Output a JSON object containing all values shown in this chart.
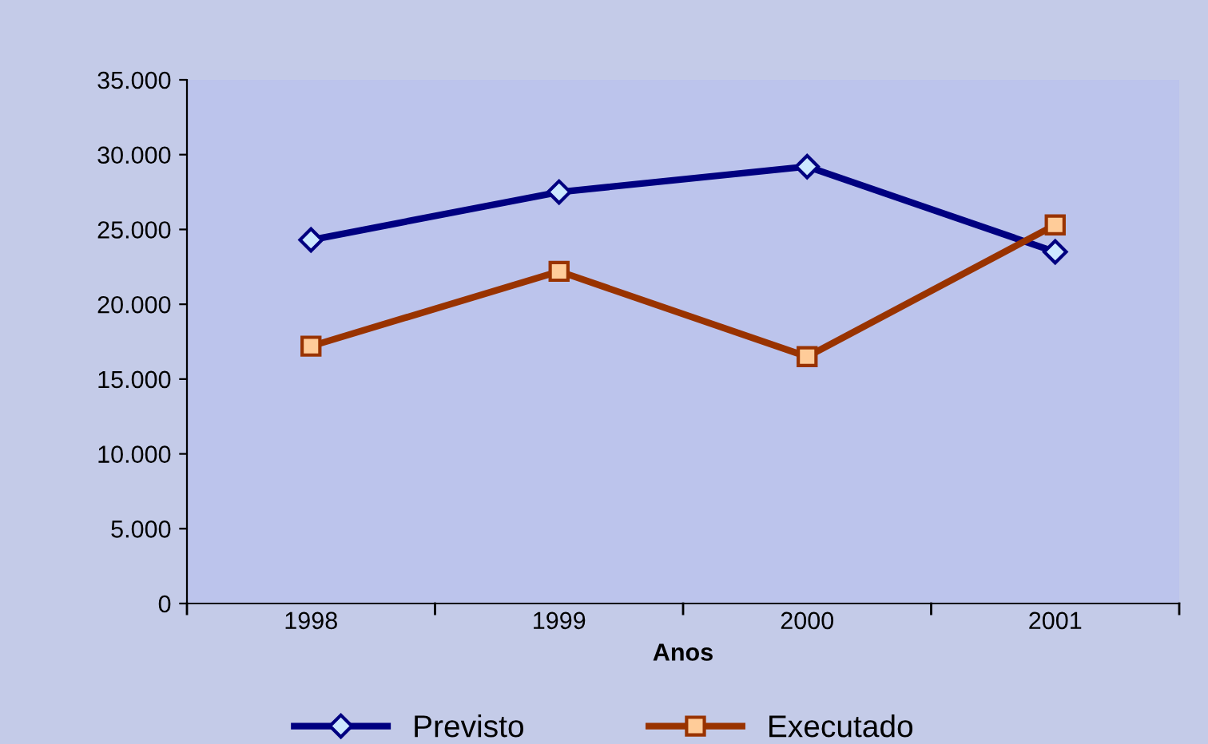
{
  "chart_data": {
    "type": "line",
    "xlabel": "Anos",
    "categories": [
      "1998",
      "1999",
      "2000",
      "2001"
    ],
    "series": [
      {
        "name": "Previsto",
        "color": "#000080",
        "marker": "diamond",
        "values": [
          24300,
          27500,
          29200,
          23500
        ]
      },
      {
        "name": "Executado",
        "color": "#993300",
        "marker": "square",
        "values": [
          17200,
          22200,
          16500,
          25300
        ]
      }
    ],
    "ylim": [
      0,
      35000
    ],
    "yticks": [
      {
        "value": 0,
        "label": "0"
      },
      {
        "value": 5000,
        "label": "5.000"
      },
      {
        "value": 10000,
        "label": "10.000"
      },
      {
        "value": 15000,
        "label": "15.000"
      },
      {
        "value": 20000,
        "label": "20.000"
      },
      {
        "value": 25000,
        "label": "25.000"
      },
      {
        "value": 30000,
        "label": "30.000"
      },
      {
        "value": 35000,
        "label": "35.000"
      }
    ],
    "grid": false,
    "legend": "bottom",
    "line_style": "solid"
  }
}
